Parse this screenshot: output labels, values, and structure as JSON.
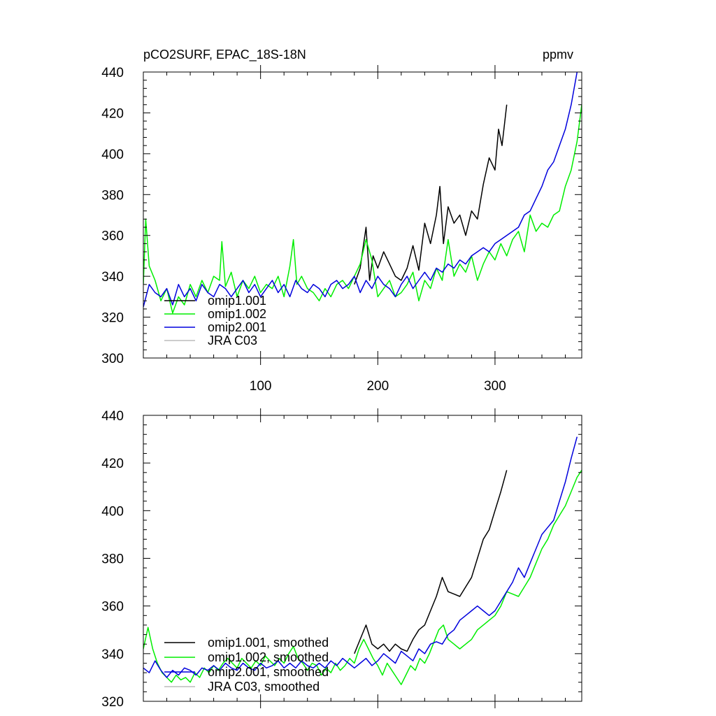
{
  "figure": {
    "title_left": "pCO2SURF, EPAC_18S-18N",
    "title_right": "ppmv"
  },
  "chart_data": [
    {
      "type": "line",
      "panel": "top",
      "xlim": [
        0,
        374
      ],
      "ylim": [
        300,
        440
      ],
      "xticks": [
        100,
        200,
        300
      ],
      "xtick_labels": [
        "100",
        "200",
        "300"
      ],
      "yticks": [
        300,
        320,
        340,
        360,
        380,
        400,
        420,
        440
      ],
      "ytick_labels": [
        "300",
        "320",
        "340",
        "360",
        "380",
        "400",
        "420",
        "440"
      ],
      "legend_position": "bottom-left",
      "series": [
        {
          "name": "omip1.001",
          "color": "#000000",
          "x": [
            180,
            185,
            190,
            193,
            196,
            200,
            205,
            210,
            215,
            220,
            225,
            230,
            235,
            240,
            245,
            250,
            253,
            256,
            260,
            265,
            270,
            275,
            280,
            285,
            290,
            295,
            300,
            303,
            306,
            310
          ],
          "y": [
            336,
            344,
            364,
            338,
            350,
            344,
            352,
            346,
            340,
            338,
            344,
            355,
            343,
            366,
            356,
            370,
            384,
            356,
            374,
            366,
            370,
            360,
            372,
            368,
            385,
            398,
            392,
            412,
            404,
            424
          ]
        },
        {
          "name": "omip1.002",
          "color": "#00ee00",
          "x": [
            0,
            2,
            5,
            10,
            15,
            20,
            25,
            30,
            35,
            40,
            45,
            50,
            55,
            60,
            65,
            67,
            70,
            75,
            80,
            85,
            90,
            95,
            100,
            105,
            110,
            115,
            120,
            125,
            128,
            131,
            135,
            140,
            145,
            150,
            155,
            160,
            165,
            170,
            175,
            180,
            185,
            190,
            195,
            200,
            205,
            210,
            215,
            220,
            225,
            230,
            235,
            240,
            245,
            250,
            255,
            260,
            265,
            270,
            275,
            280,
            285,
            290,
            295,
            300,
            305,
            310,
            315,
            320,
            325,
            330,
            335,
            340,
            345,
            350,
            355,
            360,
            365,
            370,
            374
          ],
          "y": [
            336,
            368,
            345,
            338,
            328,
            334,
            322,
            330,
            326,
            336,
            330,
            338,
            332,
            340,
            338,
            357,
            335,
            342,
            330,
            338,
            334,
            340,
            332,
            336,
            334,
            340,
            330,
            345,
            358,
            336,
            340,
            334,
            332,
            328,
            334,
            330,
            336,
            338,
            334,
            340,
            346,
            358,
            348,
            330,
            334,
            338,
            330,
            332,
            336,
            342,
            328,
            338,
            334,
            344,
            338,
            358,
            340,
            346,
            342,
            350,
            338,
            346,
            352,
            348,
            356,
            350,
            358,
            362,
            352,
            370,
            362,
            366,
            364,
            370,
            372,
            384,
            392,
            406,
            424
          ]
        },
        {
          "name": "omip2.001",
          "color": "#0000dd",
          "x": [
            0,
            5,
            10,
            15,
            20,
            25,
            30,
            35,
            40,
            45,
            50,
            55,
            60,
            65,
            70,
            75,
            80,
            85,
            90,
            95,
            100,
            105,
            110,
            115,
            120,
            125,
            130,
            135,
            140,
            145,
            150,
            155,
            160,
            165,
            170,
            175,
            180,
            185,
            190,
            195,
            200,
            205,
            210,
            215,
            220,
            225,
            230,
            235,
            240,
            245,
            250,
            255,
            260,
            265,
            270,
            275,
            280,
            285,
            290,
            295,
            300,
            305,
            310,
            315,
            320,
            325,
            330,
            335,
            340,
            345,
            350,
            355,
            360,
            365,
            370
          ],
          "y": [
            325,
            336,
            332,
            330,
            334,
            326,
            336,
            330,
            334,
            328,
            336,
            332,
            330,
            336,
            334,
            330,
            334,
            338,
            332,
            336,
            330,
            334,
            338,
            332,
            336,
            330,
            338,
            334,
            332,
            336,
            334,
            330,
            336,
            338,
            334,
            336,
            340,
            332,
            338,
            334,
            340,
            336,
            334,
            330,
            336,
            340,
            334,
            338,
            342,
            338,
            344,
            342,
            346,
            344,
            348,
            346,
            350,
            352,
            354,
            352,
            356,
            358,
            360,
            362,
            364,
            370,
            372,
            378,
            384,
            392,
            396,
            404,
            412,
            424,
            440
          ]
        },
        {
          "name": "JRA C03",
          "color": "#bbbbbb",
          "x": [],
          "y": []
        }
      ]
    },
    {
      "type": "line",
      "panel": "bottom",
      "xlim": [
        0,
        374
      ],
      "ylim": [
        320,
        440
      ],
      "xticks": [
        100,
        200,
        300
      ],
      "yticks": [
        320,
        340,
        360,
        380,
        400,
        420,
        440
      ],
      "ytick_labels": [
        "320",
        "340",
        "360",
        "380",
        "400",
        "420",
        "440"
      ],
      "legend_position": "bottom-left",
      "series": [
        {
          "name": "omip1.001, smoothed",
          "color": "#000000",
          "x": [
            180,
            185,
            190,
            195,
            200,
            205,
            210,
            215,
            220,
            225,
            230,
            235,
            240,
            245,
            250,
            255,
            260,
            265,
            270,
            275,
            280,
            285,
            290,
            295,
            300,
            305,
            310
          ],
          "y": [
            340,
            346,
            352,
            344,
            342,
            344,
            341,
            344,
            342,
            341,
            346,
            350,
            352,
            358,
            364,
            372,
            366,
            365,
            364,
            368,
            372,
            380,
            388,
            392,
            400,
            408,
            417
          ]
        },
        {
          "name": "omip1.002, smoothed",
          "color": "#00ee00",
          "x": [
            0,
            4,
            8,
            12,
            16,
            20,
            24,
            28,
            32,
            36,
            40,
            44,
            48,
            52,
            56,
            60,
            64,
            68,
            72,
            76,
            80,
            84,
            88,
            92,
            96,
            100,
            104,
            108,
            112,
            116,
            120,
            124,
            128,
            132,
            136,
            140,
            144,
            148,
            152,
            156,
            160,
            164,
            168,
            172,
            176,
            180,
            184,
            188,
            192,
            196,
            200,
            204,
            208,
            212,
            216,
            220,
            224,
            228,
            232,
            236,
            240,
            244,
            248,
            252,
            256,
            260,
            265,
            270,
            275,
            280,
            285,
            290,
            295,
            300,
            305,
            310,
            315,
            320,
            325,
            330,
            335,
            340,
            345,
            350,
            355,
            360,
            365,
            370,
            374
          ],
          "y": [
            342,
            351,
            342,
            336,
            332,
            330,
            328,
            331,
            329,
            330,
            328,
            332,
            330,
            334,
            332,
            335,
            333,
            336,
            338,
            336,
            334,
            338,
            336,
            334,
            337,
            335,
            339,
            337,
            335,
            338,
            336,
            340,
            343,
            338,
            336,
            333,
            336,
            335,
            331,
            334,
            332,
            336,
            333,
            335,
            338,
            336,
            342,
            346,
            342,
            338,
            335,
            331,
            336,
            333,
            330,
            327,
            331,
            335,
            333,
            338,
            336,
            340,
            345,
            350,
            352,
            346,
            344,
            342,
            344,
            346,
            350,
            352,
            354,
            356,
            360,
            366,
            365,
            364,
            368,
            372,
            378,
            384,
            388,
            394,
            398,
            402,
            408,
            414,
            417
          ]
        },
        {
          "name": "omip2.001, smoothed",
          "color": "#0000dd",
          "x": [
            0,
            5,
            10,
            15,
            20,
            25,
            30,
            35,
            40,
            45,
            50,
            55,
            60,
            65,
            70,
            75,
            80,
            85,
            90,
            95,
            100,
            105,
            110,
            115,
            120,
            125,
            130,
            135,
            140,
            145,
            150,
            155,
            160,
            165,
            170,
            175,
            180,
            185,
            190,
            195,
            200,
            205,
            210,
            215,
            220,
            225,
            230,
            235,
            240,
            245,
            250,
            255,
            260,
            265,
            270,
            275,
            280,
            285,
            290,
            295,
            300,
            305,
            310,
            315,
            320,
            325,
            330,
            335,
            340,
            345,
            350,
            355,
            360,
            365,
            370
          ],
          "y": [
            334,
            332,
            337,
            333,
            330,
            333,
            331,
            334,
            333,
            331,
            334,
            333,
            335,
            333,
            336,
            334,
            333,
            336,
            334,
            333,
            336,
            334,
            335,
            337,
            334,
            336,
            334,
            337,
            335,
            334,
            336,
            334,
            337,
            335,
            338,
            336,
            334,
            336,
            338,
            335,
            337,
            340,
            338,
            336,
            341,
            339,
            337,
            342,
            340,
            344,
            345,
            344,
            348,
            350,
            354,
            356,
            358,
            360,
            358,
            356,
            358,
            362,
            366,
            370,
            376,
            372,
            378,
            384,
            390,
            393,
            396,
            404,
            412,
            422,
            431
          ]
        },
        {
          "name": "JRA C03, smoothed",
          "color": "#bbbbbb",
          "x": [],
          "y": []
        }
      ]
    }
  ]
}
